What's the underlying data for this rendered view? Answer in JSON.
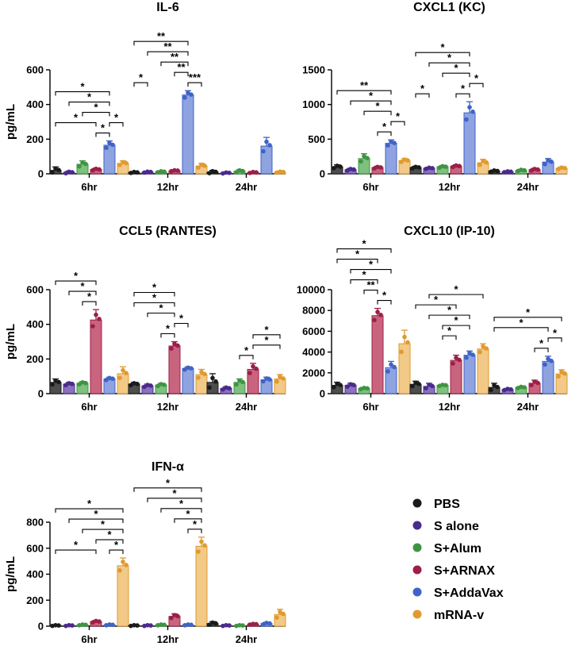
{
  "chart_data": {
    "type": "bar",
    "series": [
      {
        "name": "PBS",
        "color": "#1a1a1a",
        "fill": "#4d4d4d"
      },
      {
        "name": "S alone",
        "color": "#4b2a8c",
        "fill": "#8a72bd"
      },
      {
        "name": "S+Alum",
        "color": "#3f9442",
        "fill": "#7ec07f"
      },
      {
        "name": "S+ARNAX",
        "color": "#9c1f47",
        "fill": "#c9647f"
      },
      {
        "name": "S+AddaVax",
        "color": "#3f63c7",
        "fill": "#8ea3e0"
      },
      {
        "name": "mRNA-v",
        "color": "#e09a2e",
        "fill": "#f2c987"
      }
    ],
    "panels": [
      {
        "title": "IL-6",
        "ylabel": "pg/mL",
        "ylim": [
          0,
          600
        ],
        "yticks": [
          "0",
          "200",
          "400",
          "600"
        ],
        "categories": [
          "6hr",
          "12hr",
          "24hr"
        ],
        "values": [
          [
            20,
            8,
            55,
            25,
            165,
            60
          ],
          [
            8,
            10,
            12,
            18,
            455,
            45
          ],
          [
            10,
            5,
            15,
            8,
            160,
            10
          ]
        ],
        "errors": [
          [
            20,
            8,
            20,
            8,
            25,
            15
          ],
          [
            5,
            5,
            5,
            5,
            25,
            15
          ],
          [
            10,
            5,
            10,
            5,
            50,
            5
          ]
        ],
        "significance": [
          {
            "group": 0,
            "from": 0,
            "to": 4,
            "label": "*"
          },
          {
            "group": 0,
            "from": 1,
            "to": 4,
            "label": "*"
          },
          {
            "group": 0,
            "from": 2,
            "to": 4,
            "label": "*"
          },
          {
            "group": 0,
            "from": 3,
            "to": 4,
            "label": "*"
          },
          {
            "group": 0,
            "from": 0,
            "to": 3,
            "label": "*"
          },
          {
            "group": 0,
            "from": 4,
            "to": 5,
            "label": "*"
          },
          {
            "group": 1,
            "from": 0,
            "to": 4,
            "label": "**"
          },
          {
            "group": 1,
            "from": 1,
            "to": 4,
            "label": "**"
          },
          {
            "group": 1,
            "from": 2,
            "to": 4,
            "label": "**"
          },
          {
            "group": 1,
            "from": 4,
            "to": 5,
            "label": "***"
          },
          {
            "group": 1,
            "from": 3,
            "to": 4,
            "label": "**"
          },
          {
            "group": 1,
            "from": 0,
            "to": 1,
            "label": "*"
          }
        ]
      },
      {
        "title": "CXCL1 (KC)",
        "ylabel": "",
        "ylim": [
          0,
          1500
        ],
        "yticks": [
          "0",
          "500",
          "1000",
          "1500"
        ],
        "categories": [
          "6hr",
          "12hr",
          "24hr"
        ],
        "values": [
          [
            100,
            60,
            220,
            90,
            440,
            190
          ],
          [
            90,
            80,
            100,
            110,
            880,
            160
          ],
          [
            40,
            30,
            50,
            60,
            170,
            80
          ]
        ],
        "errors": [
          [
            30,
            20,
            70,
            20,
            50,
            30
          ],
          [
            20,
            15,
            20,
            20,
            160,
            50
          ],
          [
            15,
            10,
            15,
            20,
            50,
            20
          ]
        ],
        "significance": [
          {
            "group": 0,
            "from": 0,
            "to": 4,
            "label": "**"
          },
          {
            "group": 0,
            "from": 1,
            "to": 4,
            "label": "*"
          },
          {
            "group": 0,
            "from": 2,
            "to": 4,
            "label": "*"
          },
          {
            "group": 0,
            "from": 3,
            "to": 4,
            "label": "*"
          },
          {
            "group": 0,
            "from": 4,
            "to": 5,
            "label": "*"
          },
          {
            "group": 1,
            "from": 0,
            "to": 4,
            "label": "*"
          },
          {
            "group": 1,
            "from": 1,
            "to": 4,
            "label": "*"
          },
          {
            "group": 1,
            "from": 2,
            "to": 4,
            "label": "*"
          },
          {
            "group": 1,
            "from": 3,
            "to": 4,
            "label": "*"
          },
          {
            "group": 1,
            "from": 4,
            "to": 5,
            "label": "*"
          },
          {
            "group": 1,
            "from": 0,
            "to": 1,
            "label": "*"
          }
        ]
      },
      {
        "title": "CCL5 (RANTES)",
        "ylabel": "pg/mL",
        "ylim": [
          0,
          600
        ],
        "yticks": [
          "0",
          "200",
          "400",
          "600"
        ],
        "categories": [
          "6hr",
          "12hr",
          "24hr"
        ],
        "values": [
          [
            65,
            55,
            60,
            425,
            85,
            115
          ],
          [
            55,
            45,
            50,
            275,
            145,
            110
          ],
          [
            65,
            30,
            65,
            140,
            80,
            85
          ]
        ],
        "errors": [
          [
            20,
            10,
            10,
            60,
            10,
            40
          ],
          [
            10,
            10,
            10,
            25,
            10,
            30
          ],
          [
            50,
            10,
            20,
            35,
            15,
            25
          ]
        ],
        "significance": [
          {
            "group": 0,
            "from": 0,
            "to": 3,
            "label": "*"
          },
          {
            "group": 0,
            "from": 1,
            "to": 3,
            "label": "*"
          },
          {
            "group": 0,
            "from": 2,
            "to": 3,
            "label": "*"
          },
          {
            "group": 1,
            "from": 0,
            "to": 3,
            "label": "*"
          },
          {
            "group": 1,
            "from": 0,
            "to": 3,
            "label": "*"
          },
          {
            "group": 1,
            "from": 1,
            "to": 3,
            "label": "*"
          },
          {
            "group": 1,
            "from": 2,
            "to": 3,
            "label": "*"
          },
          {
            "group": 1,
            "from": 3,
            "to": 4,
            "label": "*"
          },
          {
            "group": 2,
            "from": 3,
            "to": 5,
            "label": "*"
          },
          {
            "group": 2,
            "from": 2,
            "to": 3,
            "label": "*"
          },
          {
            "group": 2,
            "from": 3,
            "to": 5,
            "label": "*"
          }
        ]
      },
      {
        "title": "CXCL10 (IP-10)",
        "ylabel": "",
        "ylim": [
          0,
          10000
        ],
        "yticks": [
          "0",
          "2000",
          "4000",
          "6000",
          "8000",
          "10000"
        ],
        "categories": [
          "6hr",
          "12hr",
          "24hr"
        ],
        "values": [
          [
            800,
            800,
            500,
            7500,
            2500,
            4800
          ],
          [
            900,
            700,
            800,
            3200,
            3700,
            4300
          ],
          [
            600,
            400,
            600,
            1000,
            3100,
            1900
          ]
        ],
        "errors": [
          [
            300,
            200,
            100,
            700,
            600,
            1300
          ],
          [
            300,
            300,
            100,
            500,
            400,
            500
          ],
          [
            400,
            100,
            100,
            300,
            500,
            400
          ]
        ],
        "significance": [
          {
            "group": 0,
            "from": 0,
            "to": 4,
            "label": "*"
          },
          {
            "group": 0,
            "from": 1,
            "to": 4,
            "label": "*"
          },
          {
            "group": 0,
            "from": 0,
            "to": 3,
            "label": "*"
          },
          {
            "group": 0,
            "from": 1,
            "to": 3,
            "label": "*"
          },
          {
            "group": 0,
            "from": 3,
            "to": 4,
            "label": "*"
          },
          {
            "group": 0,
            "from": 2,
            "to": 3,
            "label": "**"
          },
          {
            "group": 1,
            "from": 1,
            "to": 5,
            "label": "*"
          },
          {
            "group": 1,
            "from": 1,
            "to": 4,
            "label": "*"
          },
          {
            "group": 1,
            "from": 2,
            "to": 4,
            "label": "*"
          },
          {
            "group": 1,
            "from": 0,
            "to": 3,
            "label": "*"
          },
          {
            "group": 1,
            "from": 2,
            "to": 3,
            "label": "*"
          },
          {
            "group": 2,
            "from": 0,
            "to": 5,
            "label": "*"
          },
          {
            "group": 2,
            "from": 0,
            "to": 4,
            "label": "*"
          },
          {
            "group": 2,
            "from": 3,
            "to": 4,
            "label": "*"
          },
          {
            "group": 2,
            "from": 4,
            "to": 5,
            "label": "*"
          }
        ]
      },
      {
        "title": "IFN-α",
        "ylabel": "pg/mL",
        "ylim": [
          0,
          800
        ],
        "yticks": [
          "0",
          "200",
          "400",
          "600",
          "800"
        ],
        "categories": [
          "6hr",
          "12hr",
          "24hr"
        ],
        "values": [
          [
            5,
            5,
            10,
            35,
            10,
            465
          ],
          [
            5,
            5,
            10,
            75,
            10,
            615
          ],
          [
            20,
            5,
            5,
            15,
            20,
            90
          ]
        ],
        "errors": [
          [
            5,
            5,
            5,
            10,
            5,
            60
          ],
          [
            5,
            5,
            5,
            20,
            5,
            70
          ],
          [
            15,
            5,
            5,
            5,
            10,
            40
          ]
        ],
        "significance": [
          {
            "group": 0,
            "from": 0,
            "to": 5,
            "label": "*"
          },
          {
            "group": 0,
            "from": 1,
            "to": 5,
            "label": "*"
          },
          {
            "group": 0,
            "from": 2,
            "to": 5,
            "label": "*"
          },
          {
            "group": 0,
            "from": 3,
            "to": 5,
            "label": "*"
          },
          {
            "group": 0,
            "from": 4,
            "to": 5,
            "label": "*"
          },
          {
            "group": 0,
            "from": 0,
            "to": 3,
            "label": "*"
          },
          {
            "group": 1,
            "from": 0,
            "to": 5,
            "label": "*"
          },
          {
            "group": 1,
            "from": 1,
            "to": 5,
            "label": "*"
          },
          {
            "group": 1,
            "from": 2,
            "to": 5,
            "label": "*"
          },
          {
            "group": 1,
            "from": 3,
            "to": 5,
            "label": "*"
          },
          {
            "group": 1,
            "from": 4,
            "to": 5,
            "label": "*"
          }
        ]
      }
    ],
    "legend": [
      "PBS",
      "S alone",
      "S+Alum",
      "S+ARNAX",
      "S+AddaVax",
      "mRNA-v"
    ]
  }
}
